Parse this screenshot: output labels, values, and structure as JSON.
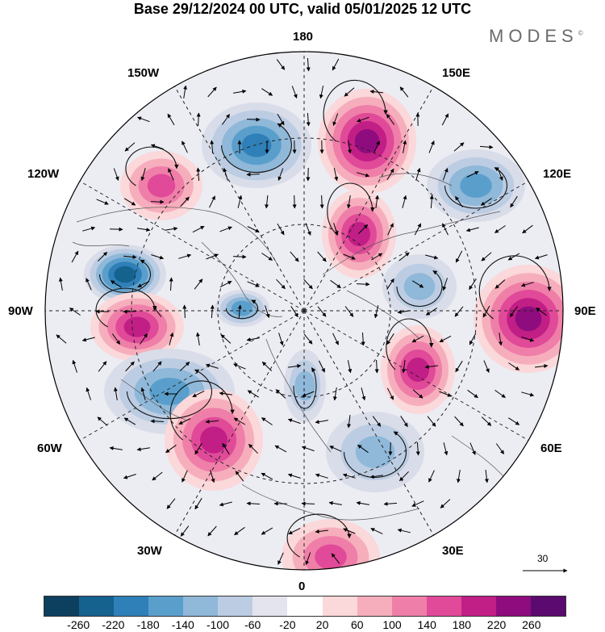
{
  "title": "Base 29/12/2024 00 UTC, valid 05/01/2025 12 UTC",
  "brand": "MODES",
  "brand_mark": "©",
  "longitude_labels": {
    "top": "180",
    "bottom": "0",
    "left": "90W",
    "right": "90E",
    "upper_left_1": "150W",
    "upper_left_2": "120W",
    "lower_left_1": "60W",
    "lower_left_2": "30W",
    "upper_right_1": "150E",
    "upper_right_2": "120E",
    "lower_right_1": "60E",
    "lower_right_2": "30E"
  },
  "reference_vector": "30",
  "colorbar": {
    "colors": [
      "#0d3f5e",
      "#16628f",
      "#2f80b8",
      "#5a9fcc",
      "#8fb8d9",
      "#bccde3",
      "#e4e4ef",
      "#ffffff",
      "#fbd8da",
      "#f6aebd",
      "#ef7fa8",
      "#e04a98",
      "#c11e86",
      "#8e0c7e",
      "#5b0a6f"
    ],
    "tick_labels": [
      "-260",
      "-220",
      "-180",
      "-140",
      "-100",
      "-60",
      "-20",
      "20",
      "60",
      "100",
      "140",
      "180",
      "220",
      "260"
    ]
  },
  "anomaly_cells": [
    {
      "id": "neg-alaska",
      "kind": "negative",
      "strength": 0.85
    },
    {
      "id": "pos-east-siberia",
      "kind": "positive",
      "strength": 0.95
    },
    {
      "id": "pos-ne-pacific",
      "kind": "positive",
      "strength": 0.6
    },
    {
      "id": "neg-pacific-120e",
      "kind": "negative",
      "strength": 0.7
    },
    {
      "id": "neg-hudson",
      "kind": "negative",
      "strength": 0.95
    },
    {
      "id": "pos-canada",
      "kind": "positive",
      "strength": 0.75
    },
    {
      "id": "neg-canadian-arctic",
      "kind": "negative",
      "strength": 0.6
    },
    {
      "id": "pos-laptev",
      "kind": "positive",
      "strength": 0.8
    },
    {
      "id": "neg-west-atlantic",
      "kind": "negative",
      "strength": 0.7
    },
    {
      "id": "pos-north-atlantic",
      "kind": "positive",
      "strength": 0.85
    },
    {
      "id": "pos-central-asia",
      "kind": "positive",
      "strength": 0.95
    },
    {
      "id": "pos-barents",
      "kind": "positive",
      "strength": 0.75
    },
    {
      "id": "neg-greenland",
      "kind": "negative",
      "strength": 0.55
    },
    {
      "id": "neg-europe",
      "kind": "negative",
      "strength": 0.55
    },
    {
      "id": "pos-africa",
      "kind": "positive",
      "strength": 0.6
    },
    {
      "id": "neg-siberia-east",
      "kind": "negative",
      "strength": 0.5
    }
  ]
}
